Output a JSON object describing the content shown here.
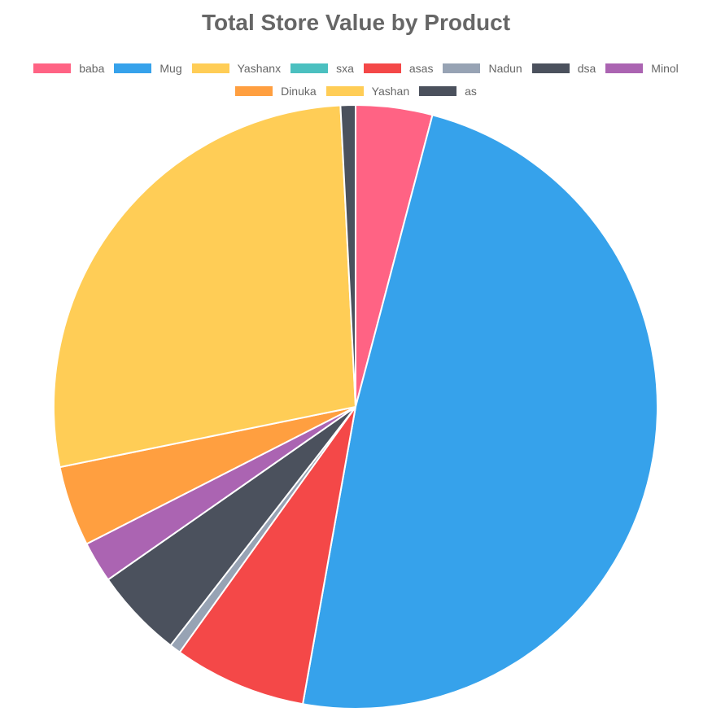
{
  "chart_data": {
    "type": "pie",
    "title": "Total Store Value by Product",
    "legend_position": "top",
    "categories": [
      "baba",
      "Mug",
      "Yashanx",
      "sxa",
      "asas",
      "Nadun",
      "dsa",
      "Minol",
      "Dinuka",
      "Yashan",
      "as"
    ],
    "values": [
      4.1,
      48.7,
      0,
      0,
      7.1,
      0.6,
      4.8,
      2.2,
      4.3,
      27.4,
      0.8
    ],
    "colors": [
      "#ff6384",
      "#36a2eb",
      "#ffcd56",
      "#4bc0c0",
      "#f44848",
      "#97a3b4",
      "#4b515d",
      "#ab64b2",
      "#ff9f40",
      "#ffcd56",
      "#4b515d"
    ]
  }
}
